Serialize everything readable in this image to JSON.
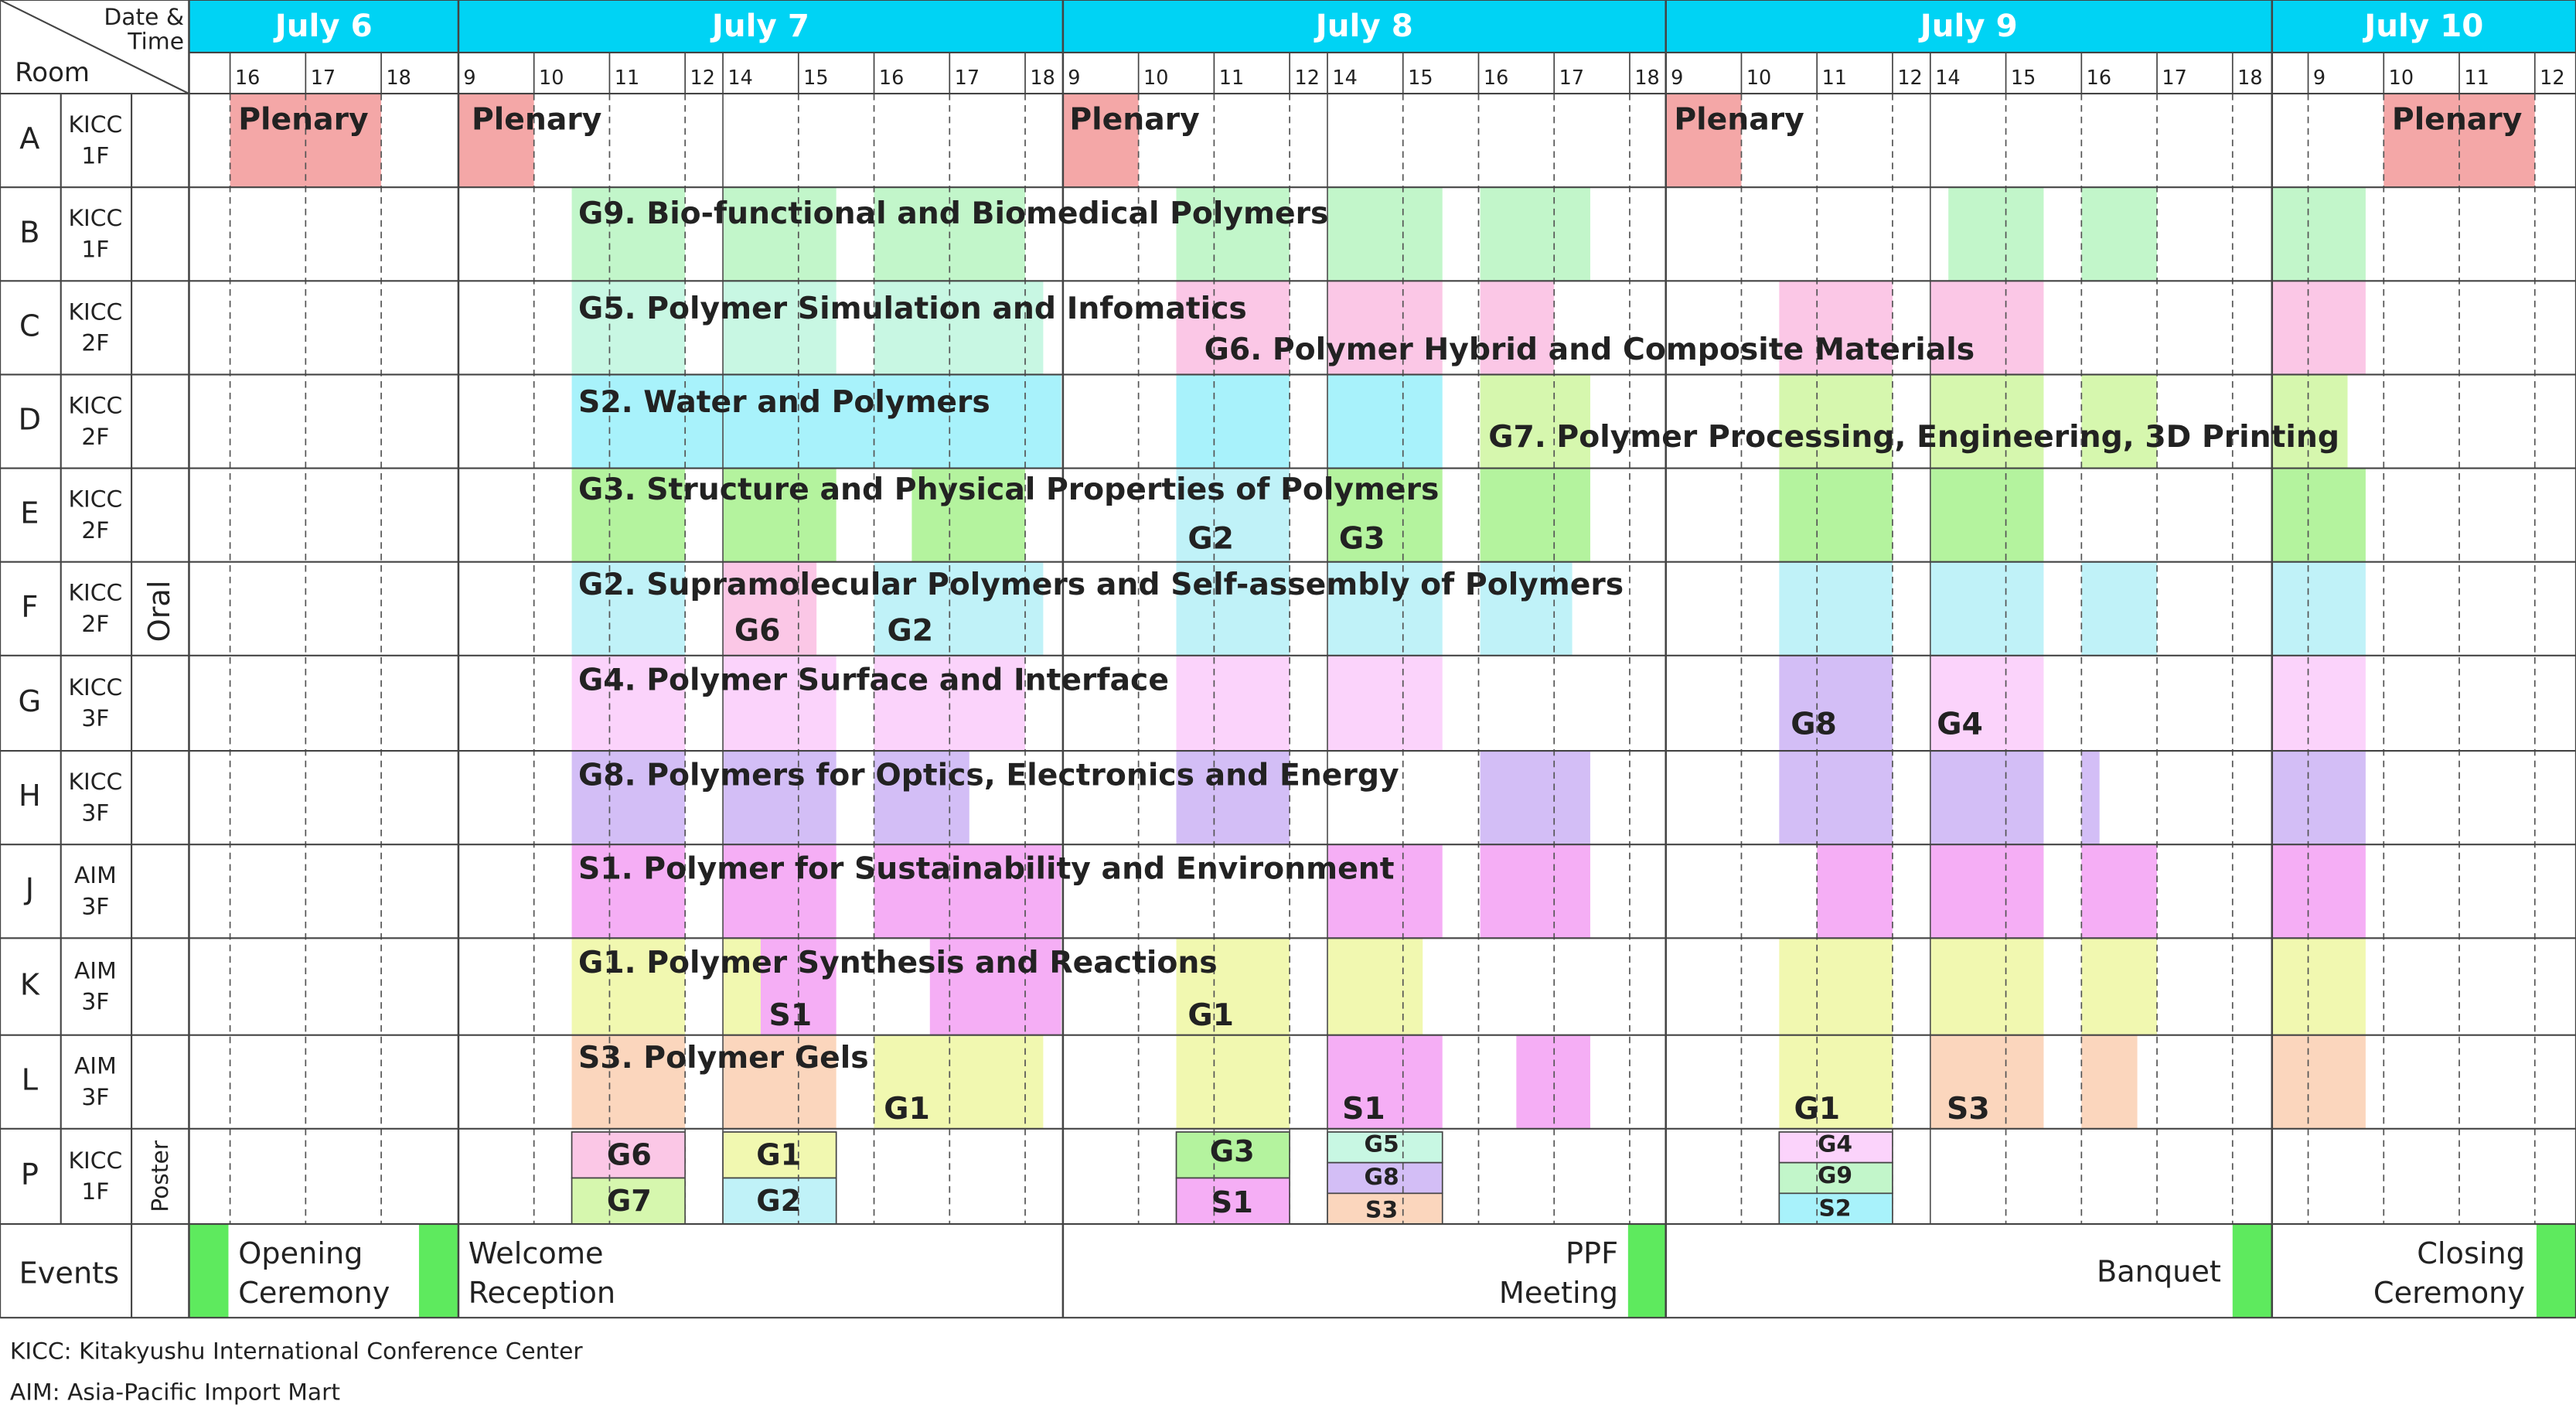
{
  "corner": {
    "date_time": [
      "Date &",
      "Time"
    ],
    "room": "Room"
  },
  "days": [
    {
      "label": "July 6",
      "hours": [
        "16",
        "17",
        "18"
      ]
    },
    {
      "label": "July 7",
      "hours": [
        "9",
        "10",
        "11",
        "12",
        "14",
        "15",
        "16",
        "17",
        "18"
      ]
    },
    {
      "label": "July 8",
      "hours": [
        "9",
        "10",
        "11",
        "12",
        "14",
        "15",
        "16",
        "17",
        "18"
      ]
    },
    {
      "label": "July 9",
      "hours": [
        "9",
        "10",
        "11",
        "12",
        "14",
        "15",
        "16",
        "17",
        "18"
      ]
    },
    {
      "label": "July 10",
      "hours": [
        "9",
        "10",
        "11",
        "12"
      ]
    }
  ],
  "rooms": [
    {
      "id": "A",
      "venue": [
        "KICC",
        "1F"
      ]
    },
    {
      "id": "B",
      "venue": [
        "KICC",
        "1F"
      ]
    },
    {
      "id": "C",
      "venue": [
        "KICC",
        "2F"
      ]
    },
    {
      "id": "D",
      "venue": [
        "KICC",
        "2F"
      ]
    },
    {
      "id": "E",
      "venue": [
        "KICC",
        "2F"
      ]
    },
    {
      "id": "F",
      "venue": [
        "KICC",
        "2F"
      ]
    },
    {
      "id": "G",
      "venue": [
        "KICC",
        "3F"
      ]
    },
    {
      "id": "H",
      "venue": [
        "KICC",
        "3F"
      ]
    },
    {
      "id": "J",
      "venue": [
        "AIM",
        "3F"
      ]
    },
    {
      "id": "K",
      "venue": [
        "AIM",
        "3F"
      ]
    },
    {
      "id": "L",
      "venue": [
        "AIM",
        "3F"
      ]
    },
    {
      "id": "P",
      "venue": [
        "KICC",
        "1F"
      ]
    }
  ],
  "categories": {
    "oral": "Oral",
    "poster": "Poster"
  },
  "sessions": [
    "Plenary",
    "Plenary",
    "Plenary",
    "Plenary",
    "Plenary",
    "G9. Bio-functional and Biomedical Polymers",
    "G5. Polymer Simulation and Infomatics",
    "G6. Polymer Hybrid and Composite Materials",
    "S2. Water and Polymers",
    "G7. Polymer Processing, Engineering, 3D Printing",
    "G3. Structure and Physical Properties of Polymers",
    "G2",
    "G3",
    "G2. Supramolecular Polymers and Self-assembly of Polymers",
    "G6",
    "G2",
    "G4. Polymer Surface and Interface",
    "G8",
    "G4",
    "G8. Polymers for Optics, Electronics and Energy",
    "S1. Polymer for Sustainability and Environment",
    "G1. Polymer Synthesis and Reactions",
    "S1",
    "G1",
    "S3. Polymer Gels",
    "G1",
    "S1",
    "G1",
    "S3",
    "G6",
    "G7",
    "G1",
    "G2",
    "G3",
    "S1",
    "G5",
    "G8",
    "S3",
    "G4",
    "G9",
    "S2"
  ],
  "events": {
    "label": "Events",
    "items": [
      [
        "Opening",
        "Ceremony"
      ],
      [
        "Welcome",
        "Reception"
      ],
      [
        "PPF",
        "Meeting"
      ],
      [
        "Banquet"
      ],
      [
        "Closing",
        "Ceremony"
      ]
    ]
  },
  "notes": [
    "KICC: Kitakyushu International Conference Center",
    "AIM: Asia-Pacific Import Mart"
  ]
}
